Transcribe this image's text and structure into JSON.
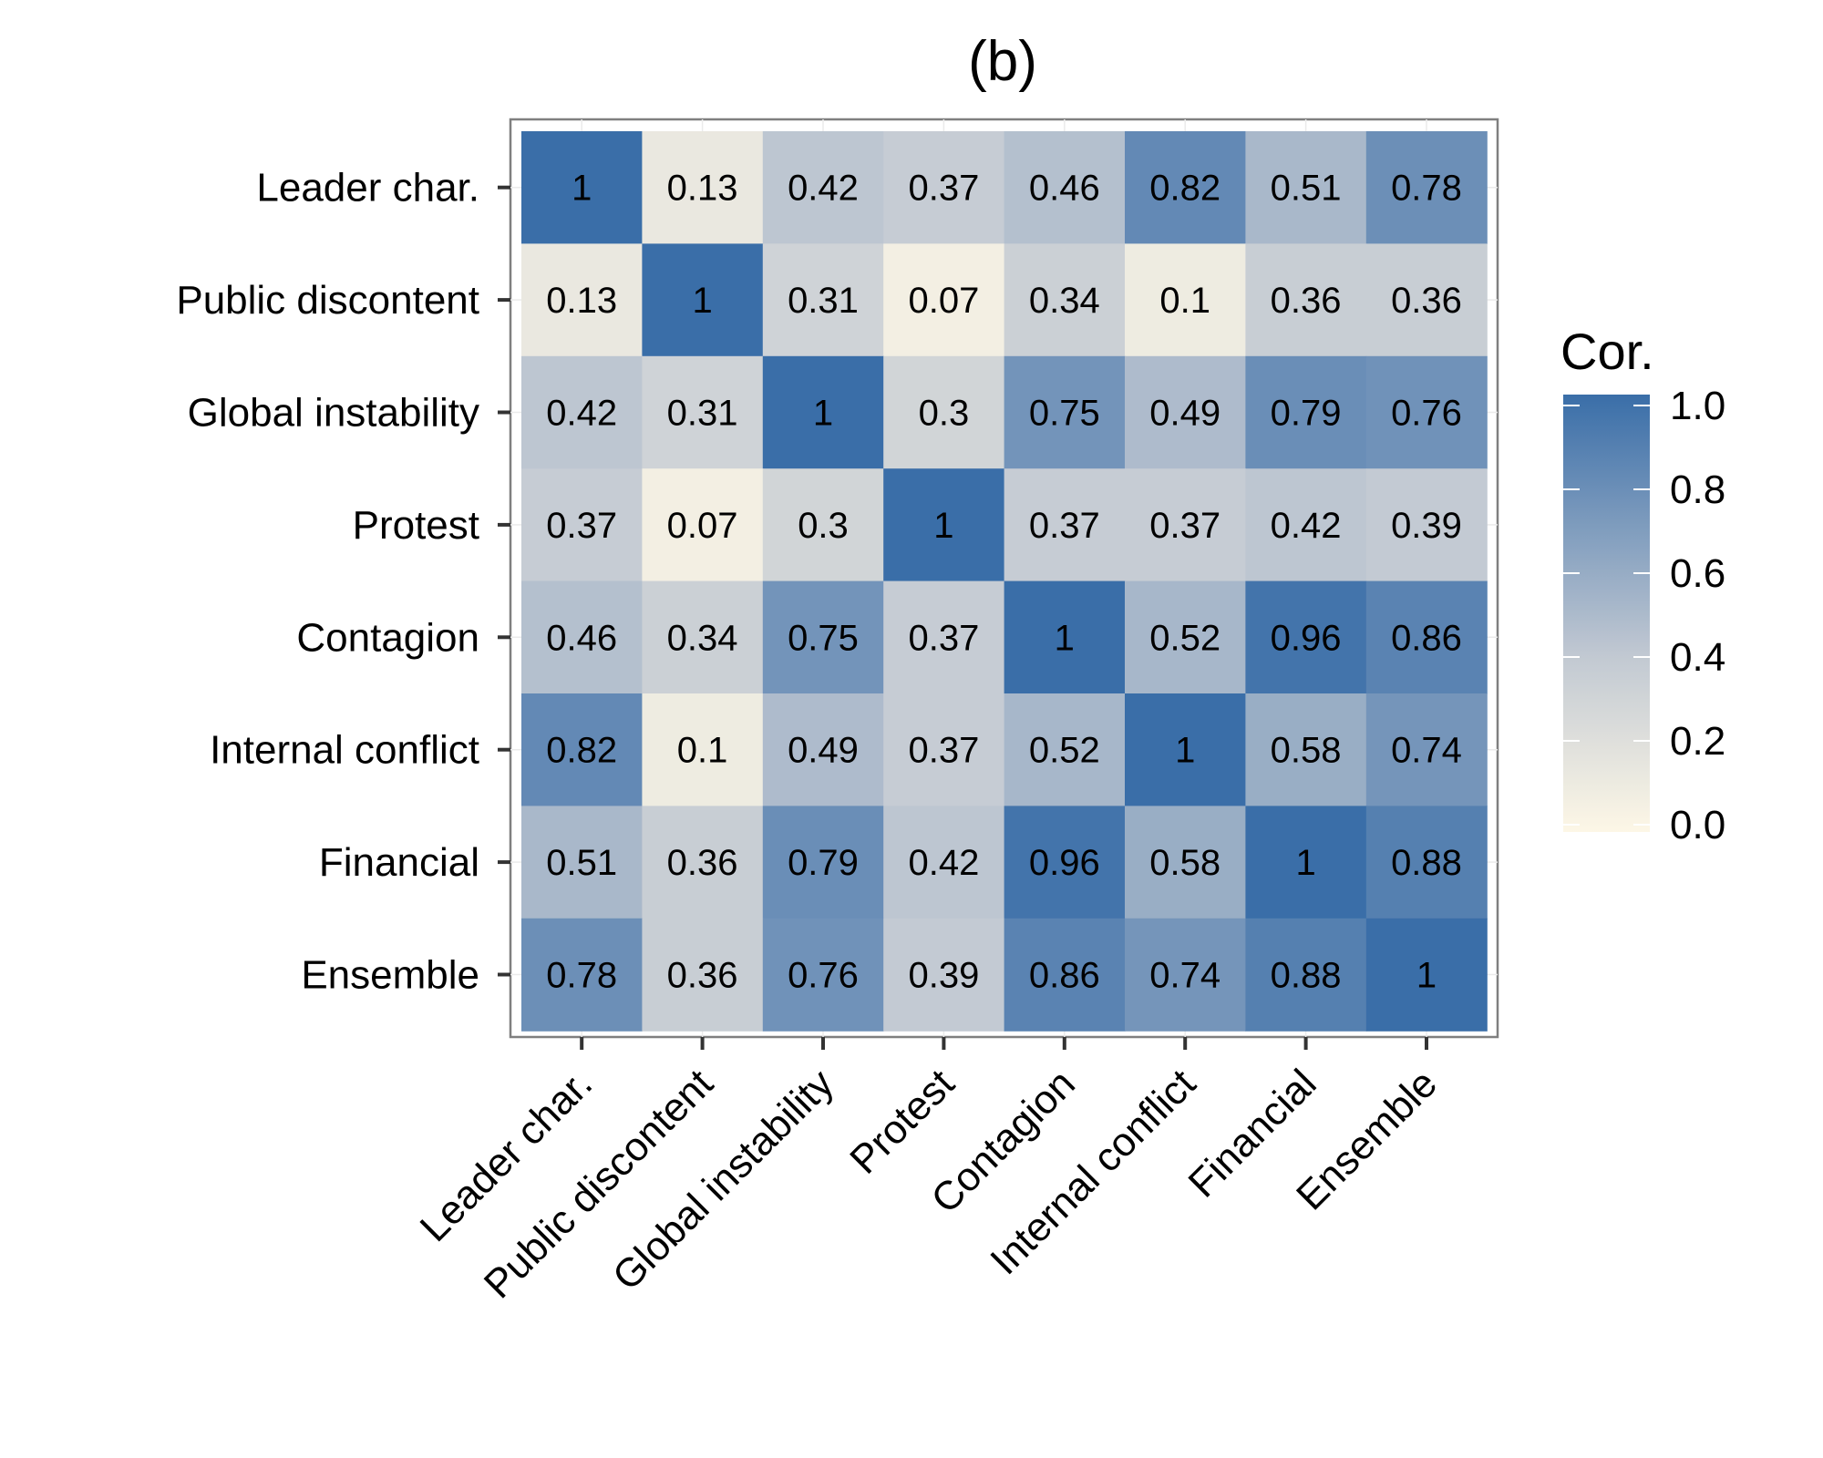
{
  "chart_data": {
    "type": "heatmap",
    "title": "(b)",
    "xlabel": "",
    "ylabel": "",
    "categories": [
      "Leader char.",
      "Public discontent",
      "Global instability",
      "Protest",
      "Contagion",
      "Internal conflict",
      "Financial",
      "Ensemble"
    ],
    "matrix": [
      [
        1,
        0.13,
        0.42,
        0.37,
        0.46,
        0.82,
        0.51,
        0.78
      ],
      [
        0.13,
        1,
        0.31,
        0.07,
        0.34,
        0.1,
        0.36,
        0.36
      ],
      [
        0.42,
        0.31,
        1,
        0.3,
        0.75,
        0.49,
        0.79,
        0.76
      ],
      [
        0.37,
        0.07,
        0.3,
        1,
        0.37,
        0.37,
        0.42,
        0.39
      ],
      [
        0.46,
        0.34,
        0.75,
        0.37,
        1,
        0.52,
        0.96,
        0.86
      ],
      [
        0.82,
        0.1,
        0.49,
        0.37,
        0.52,
        1,
        0.58,
        0.74
      ],
      [
        0.51,
        0.36,
        0.79,
        0.42,
        0.96,
        0.58,
        1,
        0.88
      ],
      [
        0.78,
        0.36,
        0.76,
        0.39,
        0.86,
        0.74,
        0.88,
        1
      ]
    ],
    "color_scale": {
      "low": "#fdf7e6",
      "mid": "#c2c9d2",
      "high": "#3a6ea8",
      "mid_value": 0.4,
      "range": [
        0,
        1
      ]
    },
    "legend": {
      "title": "Cor.",
      "ticks": [
        "1.0",
        "0.8",
        "0.6",
        "0.4",
        "0.2",
        "0.0"
      ],
      "tick_values": [
        1.0,
        0.8,
        0.6,
        0.4,
        0.2,
        0.0
      ],
      "placement": "right"
    },
    "grid": true,
    "panel_border_color": "#7f7f7f",
    "axis_tick_color": "#333333"
  }
}
